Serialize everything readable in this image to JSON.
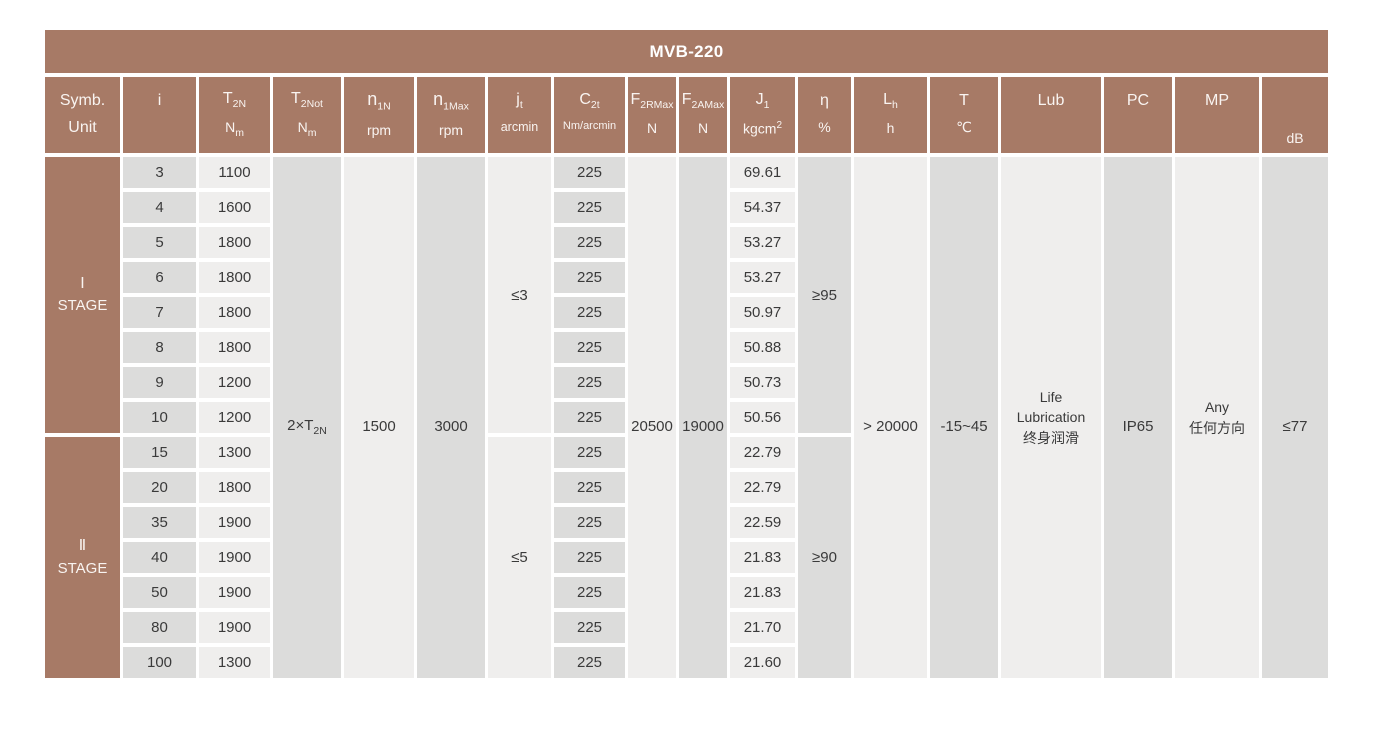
{
  "colors": {
    "brown": "#a77a66",
    "cell_dark": "#dcdcdb",
    "cell_light": "#efeeed",
    "header_text": "#f9f4f1",
    "title_text": "#ffffff",
    "body_text": "#3a3a3a"
  },
  "table": {
    "title": "MVB-220",
    "symb_label": "Symb.",
    "unit_label": "Unit",
    "columns": [
      {
        "key": "i",
        "sym": "i",
        "sub": "",
        "unit": "",
        "body": "rows",
        "shade": "dark"
      },
      {
        "key": "t2n",
        "sym": "T",
        "sub": "2N",
        "unit": "N",
        "unit_sub": "m",
        "body": "rows",
        "shade": "light"
      },
      {
        "key": "t2not",
        "sym": "T",
        "sub": "2Not",
        "unit": "N",
        "unit_sub": "m",
        "body": "full",
        "shade": "dark"
      },
      {
        "key": "n1n",
        "sym": "n",
        "sub": "1N",
        "unit": "rpm",
        "body": "full",
        "shade": "light",
        "big": true
      },
      {
        "key": "n1max",
        "sym": "n",
        "sub": "1Max",
        "unit": "rpm",
        "body": "full",
        "shade": "dark",
        "big": true
      },
      {
        "key": "jt",
        "sym": "j",
        "sub": "t",
        "unit": "arcmin",
        "unit_small": true,
        "body": "stage",
        "shade": "light"
      },
      {
        "key": "c2t",
        "sym": "C",
        "sub": "2t",
        "unit": "Nm/arcmin",
        "unit_xsmall": true,
        "body": "rows",
        "shade": "dark"
      },
      {
        "key": "f2rmax",
        "sym": "F",
        "sub": "2RMax",
        "unit": "N",
        "body": "full",
        "shade": "light"
      },
      {
        "key": "f2amax",
        "sym": "F",
        "sub": "2AMax",
        "unit": "N",
        "body": "full",
        "shade": "dark"
      },
      {
        "key": "j1",
        "sym": "J",
        "sub": "1",
        "unit": "kgcm",
        "unit_sup": "2",
        "body": "rows",
        "shade": "light"
      },
      {
        "key": "eta",
        "sym": "η",
        "sub": "",
        "unit": "%",
        "body": "stage",
        "shade": "dark"
      },
      {
        "key": "lh",
        "sym": "L",
        "sub": "h",
        "unit": "h",
        "body": "full",
        "shade": "light"
      },
      {
        "key": "t",
        "sym": "T",
        "sub": "",
        "unit": "℃",
        "body": "full",
        "shade": "dark"
      },
      {
        "key": "lub",
        "sym": "Lub",
        "sub": "",
        "unit": "",
        "body": "full",
        "shade": "light"
      },
      {
        "key": "pc",
        "sym": "PC",
        "sub": "",
        "unit": "",
        "body": "full",
        "shade": "dark"
      },
      {
        "key": "mp",
        "sym": "MP",
        "sub": "",
        "unit": "",
        "body": "full",
        "shade": "light"
      },
      {
        "key": "db",
        "sym": "",
        "sub": "",
        "unit": "dB",
        "body": "full",
        "shade": "dark",
        "header_bottom": true
      }
    ],
    "stages": [
      {
        "roman": "Ⅰ",
        "label": "STAGE",
        "jt": "≤3",
        "eta": "≥95",
        "rows": [
          {
            "i": "3",
            "t2n": "1100",
            "c2t": "225",
            "j1": "69.61"
          },
          {
            "i": "4",
            "t2n": "1600",
            "c2t": "225",
            "j1": "54.37"
          },
          {
            "i": "5",
            "t2n": "1800",
            "c2t": "225",
            "j1": "53.27"
          },
          {
            "i": "6",
            "t2n": "1800",
            "c2t": "225",
            "j1": "53.27"
          },
          {
            "i": "7",
            "t2n": "1800",
            "c2t": "225",
            "j1": "50.97"
          },
          {
            "i": "8",
            "t2n": "1800",
            "c2t": "225",
            "j1": "50.88"
          },
          {
            "i": "9",
            "t2n": "1200",
            "c2t": "225",
            "j1": "50.73"
          },
          {
            "i": "10",
            "t2n": "1200",
            "c2t": "225",
            "j1": "50.56"
          }
        ]
      },
      {
        "roman": "Ⅱ",
        "label": "STAGE",
        "jt": "≤5",
        "eta": "≥90",
        "rows": [
          {
            "i": "15",
            "t2n": "1300",
            "c2t": "225",
            "j1": "22.79"
          },
          {
            "i": "20",
            "t2n": "1800",
            "c2t": "225",
            "j1": "22.79"
          },
          {
            "i": "35",
            "t2n": "1900",
            "c2t": "225",
            "j1": "22.59"
          },
          {
            "i": "40",
            "t2n": "1900",
            "c2t": "225",
            "j1": "21.83"
          },
          {
            "i": "50",
            "t2n": "1900",
            "c2t": "225",
            "j1": "21.83"
          },
          {
            "i": "80",
            "t2n": "1900",
            "c2t": "225",
            "j1": "21.70"
          },
          {
            "i": "100",
            "t2n": "1300",
            "c2t": "225",
            "j1": "21.60"
          }
        ]
      }
    ],
    "merged": {
      "t2not": {
        "text": "2×T",
        "sub": "2N"
      },
      "n1n": {
        "text": "1500"
      },
      "n1max": {
        "text": "3000"
      },
      "f2rmax": {
        "text": "20500"
      },
      "f2amax": {
        "text": "19000"
      },
      "lh": {
        "text": "> 20000"
      },
      "t": {
        "text": "-15~45"
      },
      "lub": {
        "lines": [
          "Life",
          "Lubrication",
          "终身润滑"
        ]
      },
      "pc": {
        "text": "IP65"
      },
      "mp": {
        "lines": [
          "Any",
          "任何方向"
        ]
      },
      "db": {
        "text": "≤77"
      }
    }
  }
}
